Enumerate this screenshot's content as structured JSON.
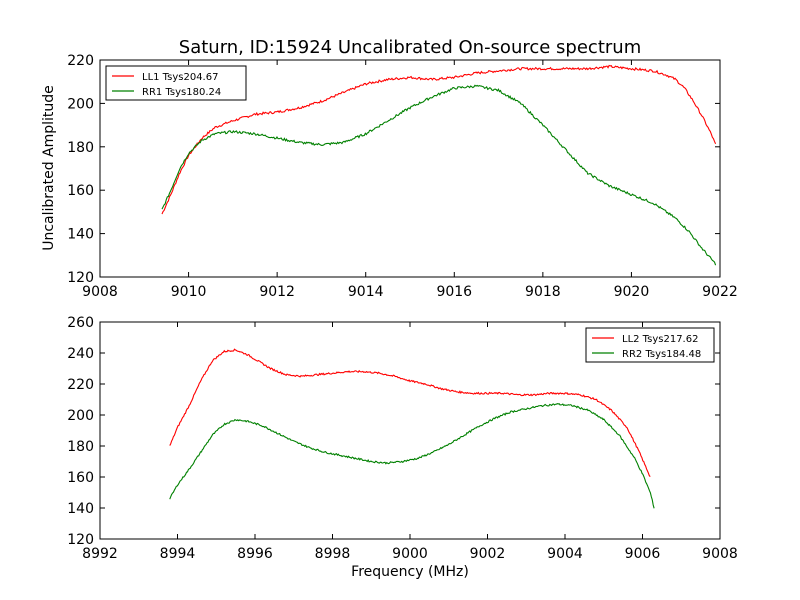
{
  "figure_title": "Saturn, ID:15924 Uncalibrated On-source spectrum",
  "ylabel": "Uncalibrated Amplitude",
  "xlabel": "Frequency (MHz)",
  "chart_data": [
    {
      "type": "line",
      "xlim": [
        9008,
        9022
      ],
      "ylim": [
        120,
        220
      ],
      "xticks": [
        "9008",
        "9010",
        "9012",
        "9014",
        "9016",
        "9018",
        "9020",
        "9022"
      ],
      "yticks": [
        "120",
        "140",
        "160",
        "180",
        "200",
        "220"
      ],
      "legend_position": "top-left",
      "series": [
        {
          "name": "LL1 Tsys204.67",
          "color": "#ff0000",
          "points": [
            [
              9009.4,
              149
            ],
            [
              9009.6,
              158
            ],
            [
              9009.8,
              168
            ],
            [
              9010.0,
              176
            ],
            [
              9010.3,
              184
            ],
            [
              9010.6,
              189
            ],
            [
              9011.0,
              192
            ],
            [
              9011.5,
              195
            ],
            [
              9012.0,
              196
            ],
            [
              9012.5,
              198
            ],
            [
              9013.0,
              201
            ],
            [
              9013.5,
              205
            ],
            [
              9014.0,
              209
            ],
            [
              9014.5,
              211
            ],
            [
              9015.0,
              212
            ],
            [
              9015.5,
              211
            ],
            [
              9016.0,
              212
            ],
            [
              9016.5,
              214
            ],
            [
              9017.0,
              215
            ],
            [
              9017.5,
              216
            ],
            [
              9018.0,
              216
            ],
            [
              9018.5,
              216
            ],
            [
              9019.0,
              216
            ],
            [
              9019.5,
              217
            ],
            [
              9020.0,
              216
            ],
            [
              9020.5,
              215
            ],
            [
              9020.8,
              213
            ],
            [
              9021.0,
              211
            ],
            [
              9021.2,
              207
            ],
            [
              9021.4,
              201
            ],
            [
              9021.6,
              194
            ],
            [
              9021.8,
              186
            ],
            [
              9021.9,
              181
            ]
          ]
        },
        {
          "name": "RR1 Tsys180.24",
          "color": "#008000",
          "points": [
            [
              9009.4,
              151
            ],
            [
              9009.6,
              160
            ],
            [
              9009.8,
              170
            ],
            [
              9010.0,
              177
            ],
            [
              9010.3,
              183
            ],
            [
              9010.6,
              186
            ],
            [
              9011.0,
              187
            ],
            [
              9011.5,
              186
            ],
            [
              9012.0,
              184
            ],
            [
              9012.5,
              182
            ],
            [
              9013.0,
              181
            ],
            [
              9013.5,
              182
            ],
            [
              9014.0,
              186
            ],
            [
              9014.5,
              192
            ],
            [
              9015.0,
              198
            ],
            [
              9015.5,
              203
            ],
            [
              9016.0,
              207
            ],
            [
              9016.5,
              208
            ],
            [
              9017.0,
              206
            ],
            [
              9017.5,
              200
            ],
            [
              9018.0,
              190
            ],
            [
              9018.5,
              179
            ],
            [
              9019.0,
              168
            ],
            [
              9019.5,
              162
            ],
            [
              9020.0,
              158
            ],
            [
              9020.5,
              154
            ],
            [
              9021.0,
              147
            ],
            [
              9021.3,
              141
            ],
            [
              9021.6,
              133
            ],
            [
              9021.9,
              126
            ]
          ]
        }
      ]
    },
    {
      "type": "line",
      "xlim": [
        8992,
        9008
      ],
      "ylim": [
        120,
        260
      ],
      "xticks": [
        "8992",
        "8994",
        "8996",
        "8998",
        "9000",
        "9002",
        "9004",
        "9006",
        "9008"
      ],
      "yticks": [
        "120",
        "140",
        "160",
        "180",
        "200",
        "220",
        "240",
        "260"
      ],
      "legend_position": "top-right",
      "series": [
        {
          "name": "LL2 Tsys217.62",
          "color": "#ff0000",
          "points": [
            [
              8993.8,
              180
            ],
            [
              8994.0,
              192
            ],
            [
              8994.3,
              206
            ],
            [
              8994.6,
              222
            ],
            [
              8994.9,
              235
            ],
            [
              8995.2,
              241
            ],
            [
              8995.5,
              242
            ],
            [
              8995.8,
              239
            ],
            [
              8996.0,
              236
            ],
            [
              8996.4,
              230
            ],
            [
              8996.8,
              226
            ],
            [
              8997.2,
              225
            ],
            [
              8997.6,
              226
            ],
            [
              8998.0,
              227
            ],
            [
              8998.4,
              228
            ],
            [
              8998.8,
              228
            ],
            [
              8999.2,
              227
            ],
            [
              8999.6,
              225
            ],
            [
              9000.0,
              222
            ],
            [
              9000.4,
              220
            ],
            [
              9000.8,
              217
            ],
            [
              9001.2,
              215
            ],
            [
              9001.6,
              214
            ],
            [
              9002.0,
              214
            ],
            [
              9002.4,
              214
            ],
            [
              9002.8,
              213
            ],
            [
              9003.2,
              213
            ],
            [
              9003.6,
              214
            ],
            [
              9004.0,
              214
            ],
            [
              9004.4,
              213
            ],
            [
              9004.8,
              210
            ],
            [
              9005.2,
              203
            ],
            [
              9005.6,
              192
            ],
            [
              9005.9,
              177
            ],
            [
              9006.2,
              160
            ]
          ]
        },
        {
          "name": "RR2 Tsys184.48",
          "color": "#008000",
          "points": [
            [
              8993.8,
              146
            ],
            [
              8994.0,
              155
            ],
            [
              8994.3,
              165
            ],
            [
              8994.6,
              176
            ],
            [
              8994.9,
              187
            ],
            [
              8995.2,
              194
            ],
            [
              8995.5,
              197
            ],
            [
              8995.8,
              196
            ],
            [
              8996.2,
              193
            ],
            [
              8996.6,
              188
            ],
            [
              8997.0,
              183
            ],
            [
              8997.4,
              179
            ],
            [
              8997.8,
              176
            ],
            [
              8998.2,
              174
            ],
            [
              8998.6,
              172
            ],
            [
              8999.0,
              170
            ],
            [
              8999.4,
              169
            ],
            [
              8999.8,
              170
            ],
            [
              9000.2,
              172
            ],
            [
              9000.6,
              176
            ],
            [
              9001.0,
              181
            ],
            [
              9001.4,
              187
            ],
            [
              9001.8,
              193
            ],
            [
              9002.2,
              198
            ],
            [
              9002.6,
              202
            ],
            [
              9003.0,
              204
            ],
            [
              9003.4,
              206
            ],
            [
              9003.8,
              207
            ],
            [
              9004.2,
              206
            ],
            [
              9004.6,
              203
            ],
            [
              9005.0,
              197
            ],
            [
              9005.4,
              187
            ],
            [
              9005.8,
              172
            ],
            [
              9006.0,
              162
            ],
            [
              9006.2,
              150
            ],
            [
              9006.3,
              140
            ]
          ]
        }
      ]
    }
  ]
}
